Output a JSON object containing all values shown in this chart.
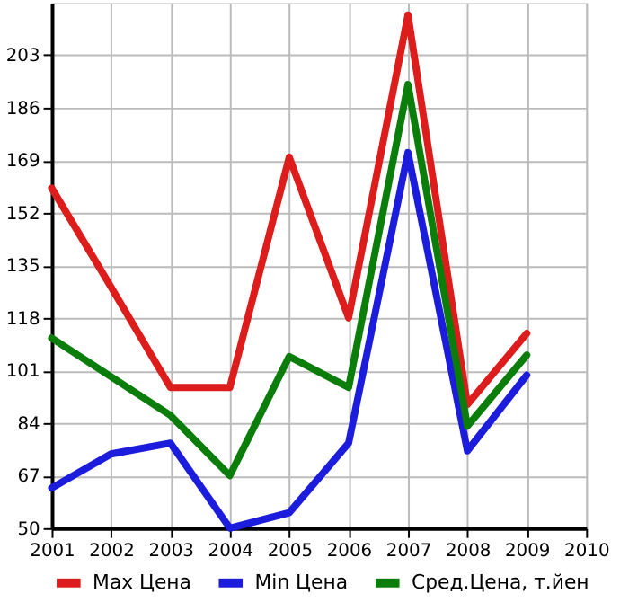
{
  "chart_data": {
    "type": "line",
    "x": [
      2001,
      2002,
      2003,
      2004,
      2005,
      2006,
      2007,
      2008,
      2009
    ],
    "xlim": [
      2001,
      2010
    ],
    "xticks": [
      2001,
      2002,
      2003,
      2004,
      2005,
      2006,
      2007,
      2008,
      2009,
      2010
    ],
    "ylim": [
      50,
      220
    ],
    "yticks": [
      50,
      67,
      84,
      101,
      118,
      135,
      152,
      169,
      186,
      203
    ],
    "grid": true,
    "legend": "bottom",
    "marker": "none",
    "line_style": "solid",
    "series": [
      {
        "name": "Max Цена",
        "color": "#dd1c1c",
        "values": [
          160,
          128,
          95.5,
          95.5,
          170,
          118,
          216,
          90,
          113
        ]
      },
      {
        "name": "Min Цена",
        "color": "#1c1cdd",
        "values": [
          63,
          74,
          77.5,
          50,
          55,
          77.5,
          171.5,
          75,
          99.5
        ]
      },
      {
        "name": "Сред.Цена, т.йен",
        "color": "#0a7d0a",
        "values": [
          111.5,
          99,
          86.5,
          67,
          105.5,
          95.5,
          193.5,
          83,
          106
        ]
      }
    ]
  }
}
